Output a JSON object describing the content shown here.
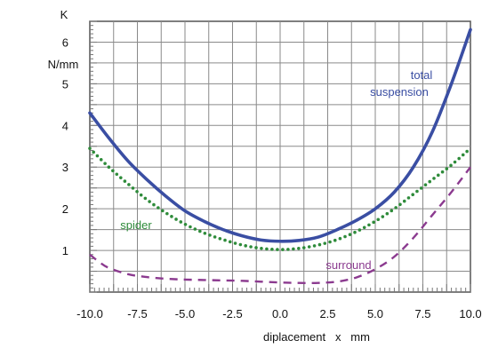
{
  "chart_data": {
    "type": "line",
    "title": "",
    "xlabel": "diplacement   x   mm",
    "ylabel_symbol": "K",
    "ylabel_unit": "N/mm",
    "xlim": [
      -10,
      10
    ],
    "ylim": [
      0,
      6.5
    ],
    "x_ticks": [
      -10,
      -7.5,
      -5,
      -2.5,
      0,
      2.5,
      5,
      7.5,
      10
    ],
    "x_tick_labels": [
      "-10.0",
      "-7.5",
      "-5.0",
      "-2.5",
      "0.0",
      "2.5",
      "5.0",
      "7.5",
      "10.0"
    ],
    "y_ticks": [
      1,
      2,
      3,
      4,
      5,
      6
    ],
    "y_tick_labels": [
      "1",
      "2",
      "3",
      "4",
      "5",
      "6"
    ],
    "grid": true,
    "series": [
      {
        "name": "total suspension",
        "label_lines": [
          "total",
          "suspension"
        ],
        "color": "#3a4ea3",
        "style": "solid",
        "x": [
          -10,
          -9,
          -8,
          -7,
          -6,
          -5,
          -4,
          -3,
          -2,
          -1,
          0,
          1,
          2,
          3,
          4,
          5,
          6,
          7,
          8,
          9,
          10
        ],
        "y": [
          4.3,
          3.7,
          3.15,
          2.7,
          2.3,
          1.95,
          1.7,
          1.5,
          1.35,
          1.25,
          1.22,
          1.24,
          1.32,
          1.5,
          1.72,
          2.0,
          2.4,
          3.0,
          3.85,
          5.0,
          6.3
        ]
      },
      {
        "name": "spider",
        "label_lines": [
          "spider"
        ],
        "color": "#2e8b3a",
        "style": "dotted",
        "x": [
          -10,
          -9,
          -8,
          -7,
          -6,
          -5,
          -4,
          -3,
          -2,
          -1,
          0,
          1,
          2,
          3,
          4,
          5,
          6,
          7,
          8,
          9,
          10
        ],
        "y": [
          3.45,
          3.0,
          2.6,
          2.22,
          1.9,
          1.63,
          1.42,
          1.26,
          1.13,
          1.05,
          1.02,
          1.05,
          1.13,
          1.26,
          1.45,
          1.7,
          2.0,
          2.35,
          2.7,
          3.05,
          3.45
        ]
      },
      {
        "name": "surround",
        "label_lines": [
          "surround"
        ],
        "color": "#8b3a8f",
        "style": "dashed",
        "x": [
          -10,
          -9.5,
          -9,
          -8,
          -7,
          -6,
          -5,
          -4,
          -3,
          -2,
          -1,
          0,
          1,
          2,
          3,
          4,
          5,
          6,
          7,
          8,
          9,
          10
        ],
        "y": [
          0.9,
          0.72,
          0.58,
          0.43,
          0.36,
          0.32,
          0.3,
          0.29,
          0.28,
          0.27,
          0.25,
          0.23,
          0.22,
          0.22,
          0.25,
          0.35,
          0.55,
          0.85,
          1.3,
          1.85,
          2.4,
          3.0
        ]
      }
    ]
  }
}
